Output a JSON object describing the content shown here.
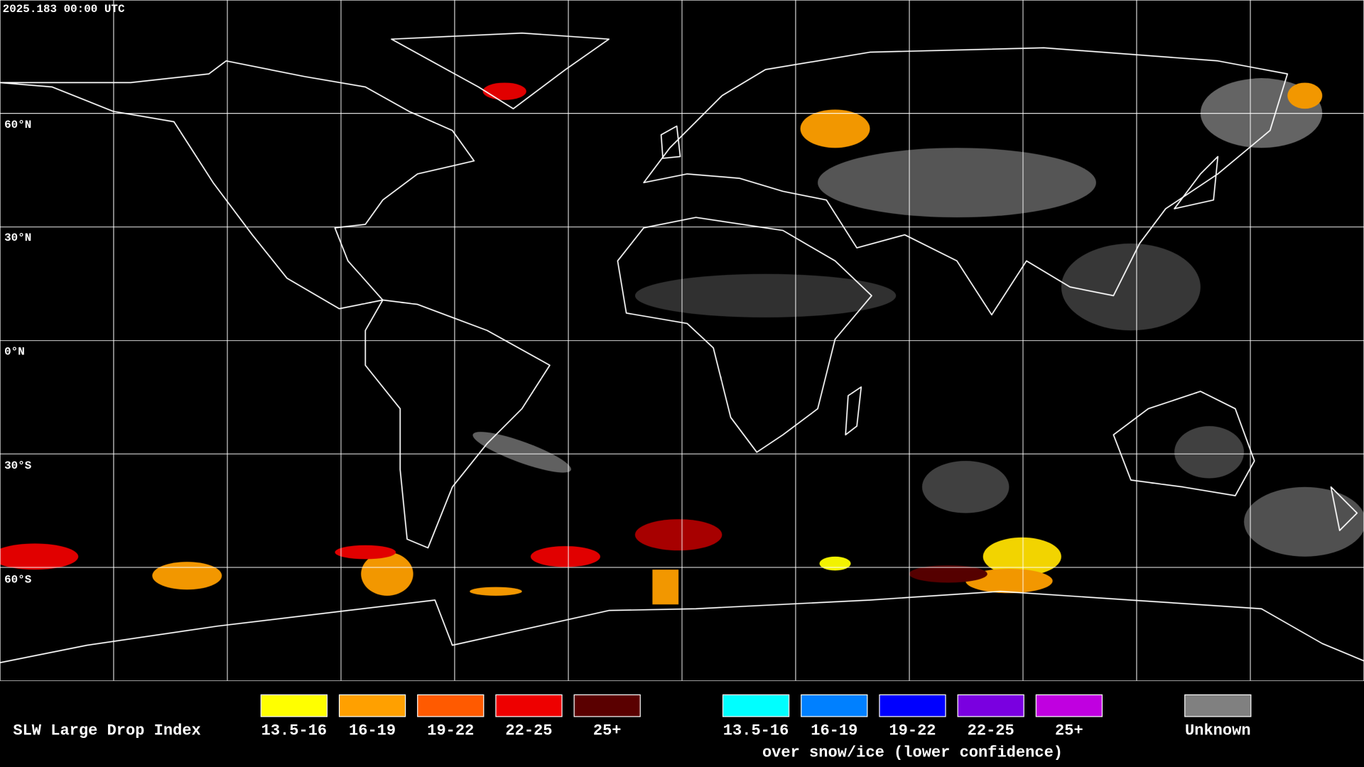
{
  "header": {
    "timestamp": "2025.183 00:00 UTC"
  },
  "map": {
    "lat_labels": [
      "60°N",
      "30°N",
      "0°N",
      "30°S",
      "60°S"
    ]
  },
  "legend": {
    "title": "SLW Large Drop Index",
    "groups": [
      {
        "items": [
          {
            "label": "13.5-16",
            "color": "#ffff00"
          },
          {
            "label": "16-19",
            "color": "#ffa000"
          },
          {
            "label": "19-22",
            "color": "#ff5a00"
          },
          {
            "label": "22-25",
            "color": "#ee0000"
          },
          {
            "label": "25+",
            "color": "#5a0000"
          }
        ]
      },
      {
        "items": [
          {
            "label": "13.5-16",
            "color": "#00ffff"
          },
          {
            "label": "16-19",
            "color": "#0080ff"
          },
          {
            "label": "19-22",
            "color": "#0000ff"
          },
          {
            "label": "22-25",
            "color": "#7a00e0"
          },
          {
            "label": "25+",
            "color": "#c000e0"
          }
        ],
        "caption": "over snow/ice (lower confidence)"
      },
      {
        "items": [
          {
            "label": "Unknown",
            "color": "#808080"
          }
        ]
      }
    ]
  }
}
